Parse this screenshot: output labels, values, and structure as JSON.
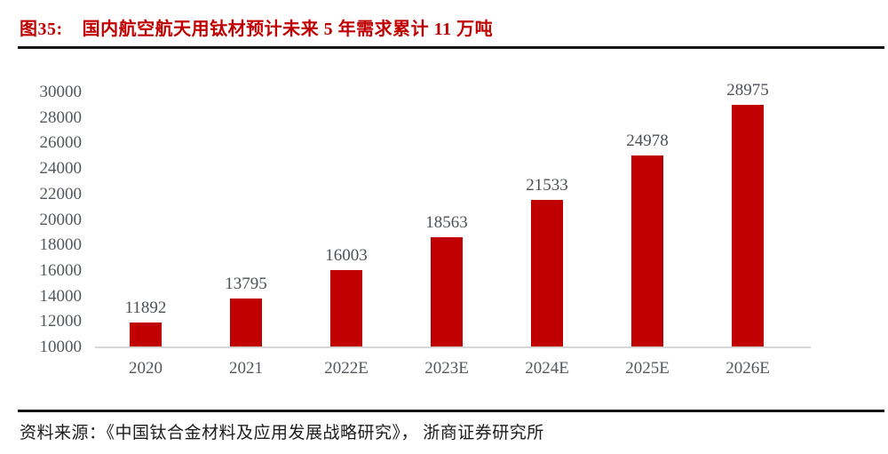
{
  "figure": {
    "label": "图35:",
    "title": "国内航空航天用钛材预计未来 5 年需求累计 11 万吨"
  },
  "chart_data": {
    "type": "bar",
    "categories": [
      "2020",
      "2021",
      "2022E",
      "2023E",
      "2024E",
      "2025E",
      "2026E"
    ],
    "values": [
      11892,
      13795,
      16003,
      18563,
      21533,
      24978,
      28975
    ],
    "title": "国内航空航天用钛材预计未来 5 年需求累计 11 万吨",
    "xlabel": "",
    "ylabel": "",
    "ylim": [
      10000,
      30000
    ],
    "yticks": [
      10000,
      12000,
      14000,
      16000,
      18000,
      20000,
      22000,
      24000,
      26000,
      28000,
      30000
    ],
    "grid": false,
    "legend": "none",
    "bar_color": "#c00000",
    "data_labels": true
  },
  "footer": {
    "source": "资料来源：《中国钛合金材料及应用发展战略研究》， 浙商证券研究所"
  },
  "colors": {
    "accent_red": "#c00000",
    "axis_line_gray": "#d6d6d6",
    "chart_text_gray": "#53565e",
    "rule_black": "#141414"
  }
}
